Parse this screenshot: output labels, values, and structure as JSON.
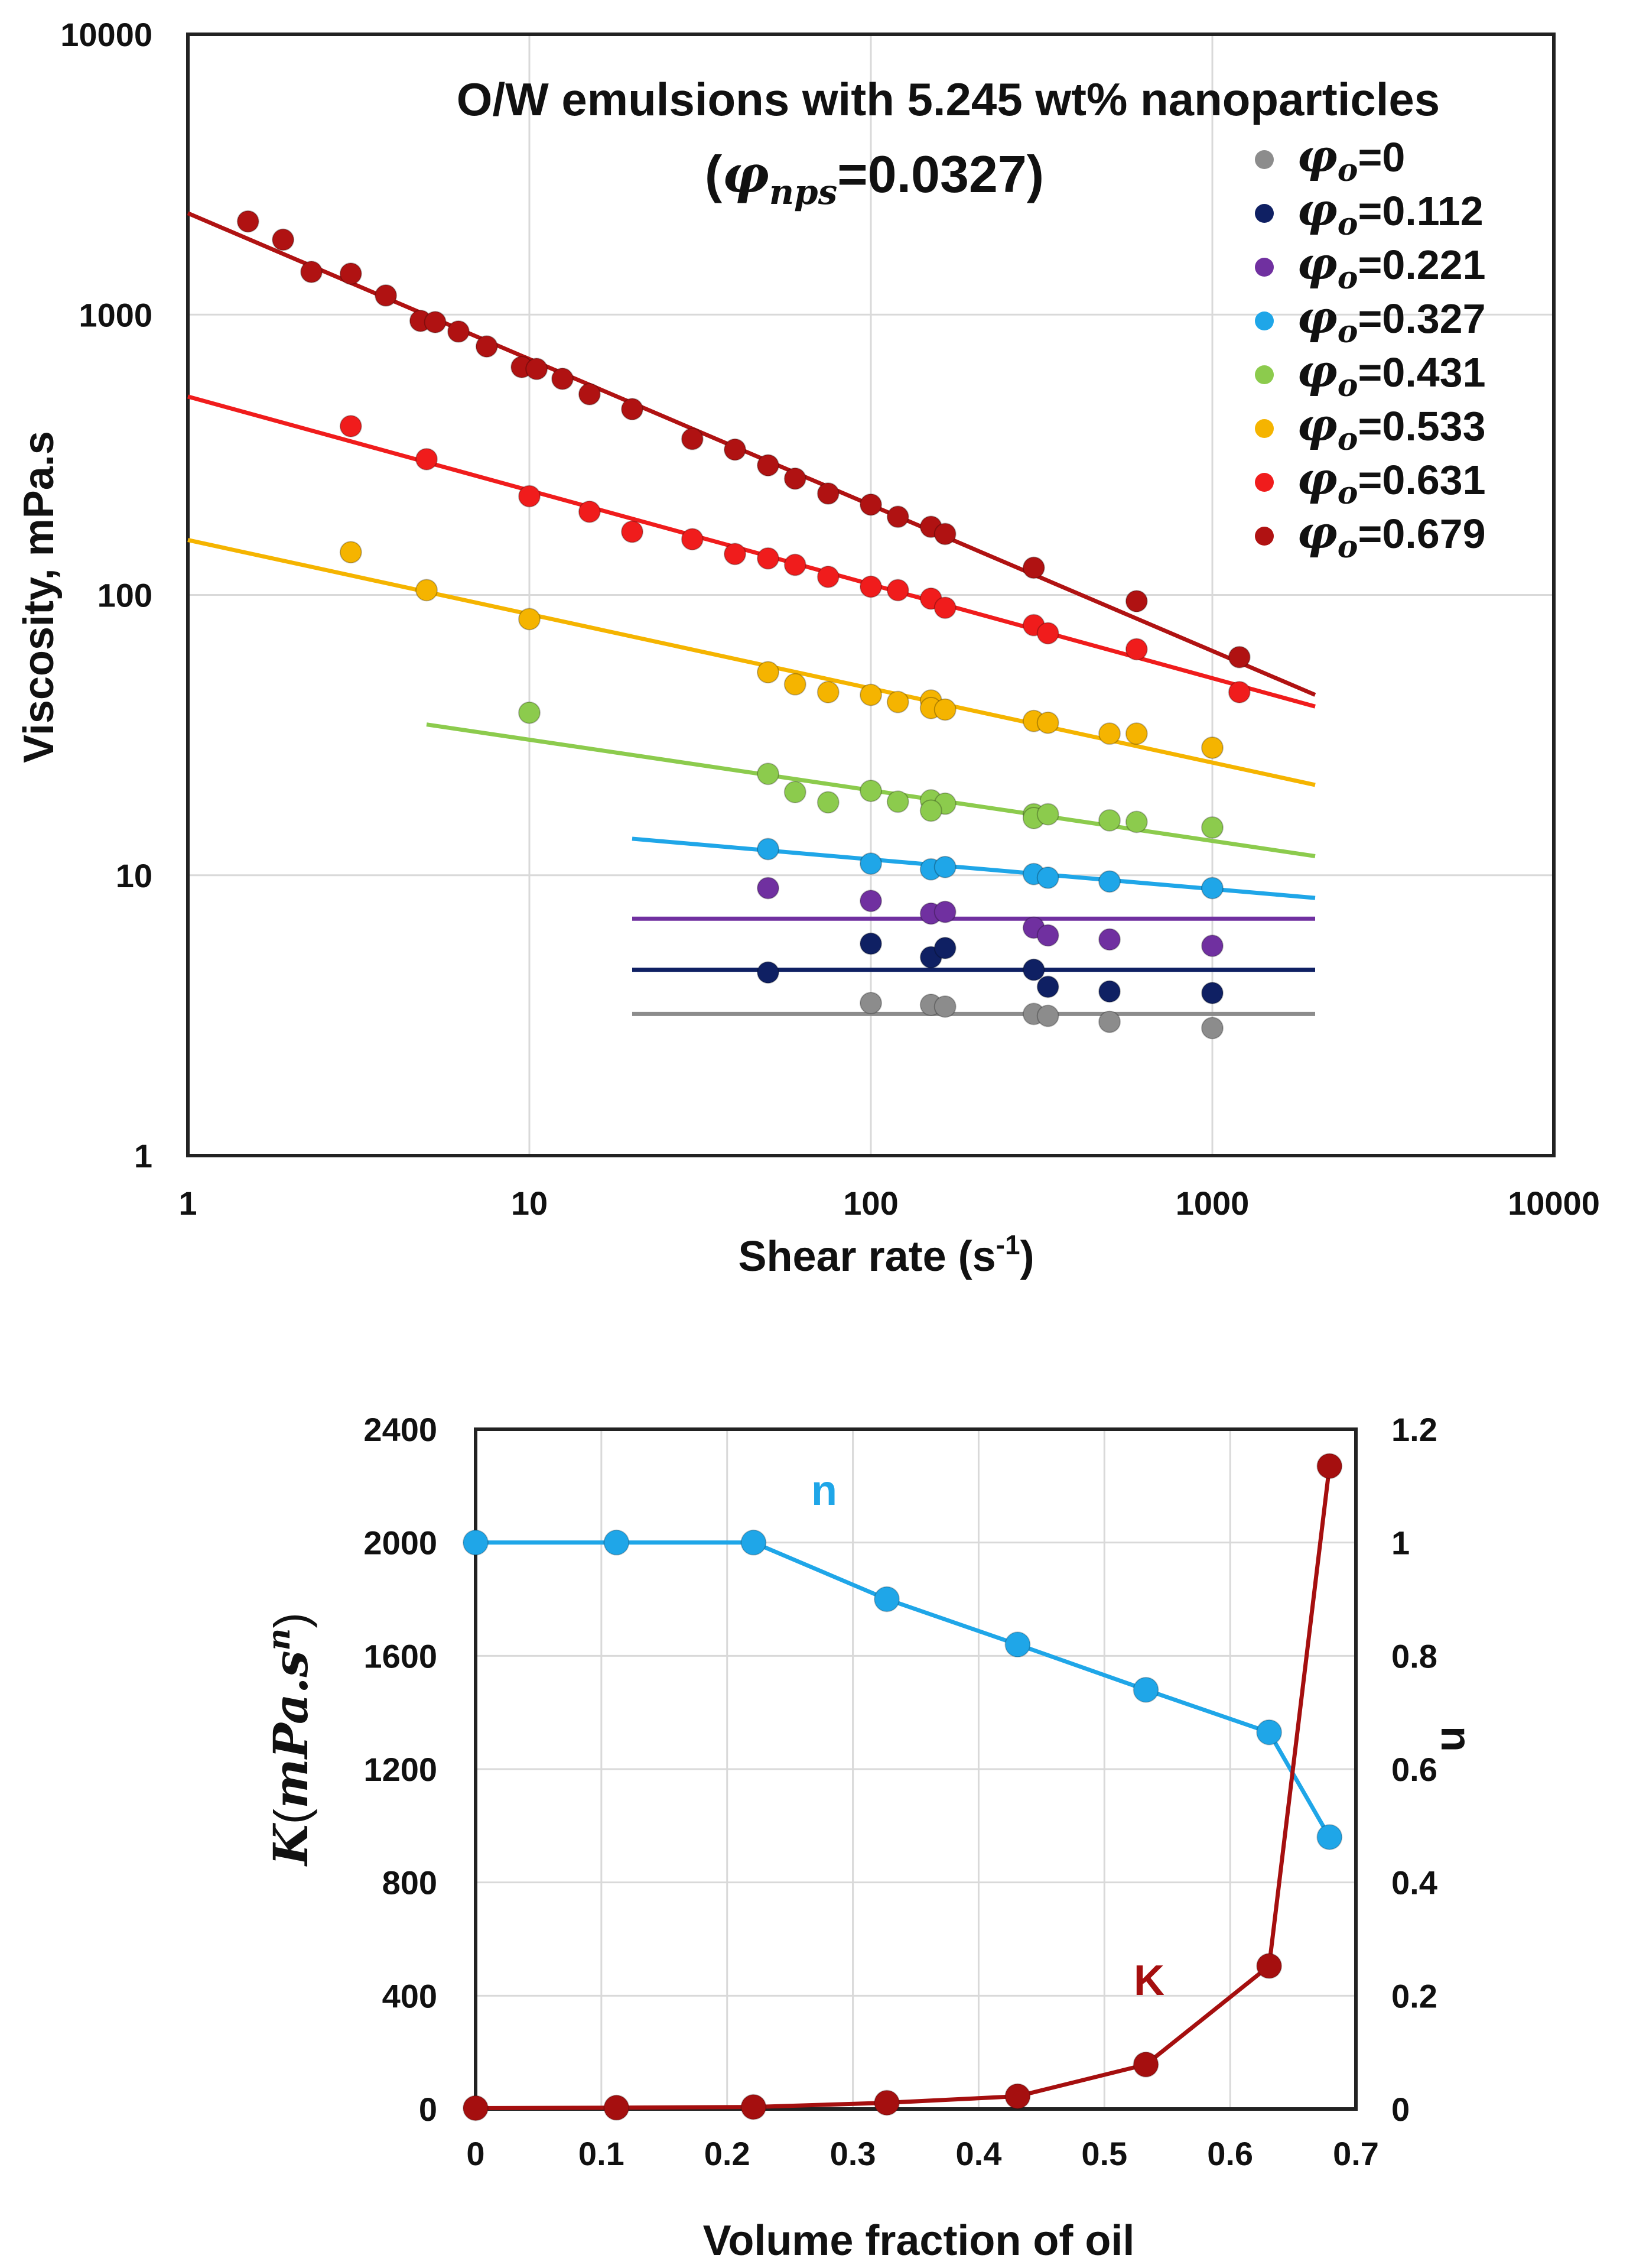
{
  "chart_data": [
    {
      "type": "scatter",
      "title": "O/W emulsions with 5.245 wt% nanoparticles",
      "subtitle": {
        "prefix": "(",
        "symbol": "φ",
        "subscript": "nps",
        "suffix": "=0.0327)"
      },
      "xlabel": "Shear rate (s-1)",
      "xlabel_parts": {
        "main": "Shear rate (s",
        "sup": "-1",
        "end": ")"
      },
      "ylabel": "Viscosity, mPa.s",
      "xscale": "log",
      "yscale": "log",
      "xlim": [
        1,
        10000
      ],
      "ylim": [
        1,
        10000
      ],
      "xticks": [
        1,
        10,
        100,
        1000,
        10000
      ],
      "xtick_labels": [
        "1",
        "10",
        "100",
        "1000",
        "10000"
      ],
      "yticks": [
        1,
        10,
        100,
        1000,
        10000
      ],
      "ytick_labels": [
        "1",
        "10",
        "100",
        "1000",
        "10000"
      ],
      "grid": true,
      "legend_position": "top-right",
      "series": [
        {
          "name": "φo=0",
          "legend_symbol": "φ",
          "legend_sub": "o",
          "legend_value": "=0",
          "color": "#8c8c8c",
          "points": [
            [
              100,
              3.5
            ],
            [
              150,
              3.45
            ],
            [
              165,
              3.4
            ],
            [
              300,
              3.2
            ],
            [
              330,
              3.15
            ],
            [
              500,
              3.0
            ],
            [
              1000,
              2.85
            ]
          ],
          "fit": {
            "x": [
              20,
              2000
            ],
            "y": [
              3.2,
              3.2
            ]
          }
        },
        {
          "name": "φo=0.112",
          "legend_symbol": "φ",
          "legend_sub": "o",
          "legend_value": "=0.112",
          "color": "#0f2063",
          "points": [
            [
              50,
              4.5
            ],
            [
              100,
              5.7
            ],
            [
              150,
              5.1
            ],
            [
              165,
              5.5
            ],
            [
              300,
              4.6
            ],
            [
              330,
              4.0
            ],
            [
              500,
              3.85
            ],
            [
              1000,
              3.8
            ]
          ],
          "fit": {
            "x": [
              20,
              2000
            ],
            "y": [
              4.6,
              4.6
            ]
          }
        },
        {
          "name": "φo=0.221",
          "legend_symbol": "φ",
          "legend_sub": "o",
          "legend_value": "=0.221",
          "color": "#7030a0",
          "points": [
            [
              50,
              9.0
            ],
            [
              100,
              8.1
            ],
            [
              150,
              7.3
            ],
            [
              165,
              7.4
            ],
            [
              300,
              6.5
            ],
            [
              330,
              6.1
            ],
            [
              500,
              5.9
            ],
            [
              1000,
              5.6
            ]
          ],
          "fit": {
            "x": [
              20,
              2000
            ],
            "y": [
              7.0,
              7.0
            ]
          }
        },
        {
          "name": "φo=0.327",
          "legend_symbol": "φ",
          "legend_sub": "o",
          "legend_value": "=0.327",
          "color": "#1fa6e8",
          "points": [
            [
              50,
              12.4
            ],
            [
              100,
              11.0
            ],
            [
              150,
              10.5
            ],
            [
              165,
              10.7
            ],
            [
              300,
              10.1
            ],
            [
              330,
              9.8
            ],
            [
              500,
              9.5
            ],
            [
              1000,
              9.0
            ]
          ],
          "fit": {
            "x": [
              20,
              2000
            ],
            "y": [
              13.5,
              8.3
            ]
          }
        },
        {
          "name": "φo=0.431",
          "legend_symbol": "φ",
          "legend_sub": "o",
          "legend_value": "=0.431",
          "color": "#8ccb4d",
          "points": [
            [
              10,
              38
            ],
            [
              50,
              23
            ],
            [
              60,
              19.8
            ],
            [
              75,
              18.2
            ],
            [
              100,
              20
            ],
            [
              120,
              18.3
            ],
            [
              150,
              18.5
            ],
            [
              165,
              18.0
            ],
            [
              150,
              17.0
            ],
            [
              300,
              16.5
            ],
            [
              300,
              16.0
            ],
            [
              330,
              16.5
            ],
            [
              500,
              15.7
            ],
            [
              600,
              15.5
            ],
            [
              1000,
              14.8
            ]
          ],
          "fit": {
            "x": [
              5,
              2000
            ],
            "y": [
              34.5,
              11.7
            ]
          }
        },
        {
          "name": "φo=0.533",
          "legend_symbol": "φ",
          "legend_sub": "o",
          "legend_value": "=0.533",
          "color": "#f5b400",
          "points": [
            [
              3,
              142
            ],
            [
              5,
              104
            ],
            [
              10,
              82
            ],
            [
              50,
              53
            ],
            [
              60,
              48
            ],
            [
              75,
              45
            ],
            [
              100,
              44
            ],
            [
              120,
              41.5
            ],
            [
              150,
              42
            ],
            [
              150,
              39.5
            ],
            [
              165,
              39
            ],
            [
              300,
              35.5
            ],
            [
              330,
              35
            ],
            [
              500,
              32
            ],
            [
              600,
              32
            ],
            [
              1000,
              28.5
            ]
          ],
          "fit": {
            "x": [
              1,
              2000
            ],
            "y": [
              157,
              21
            ]
          }
        },
        {
          "name": "φo=0.631",
          "legend_symbol": "φ",
          "legend_sub": "o",
          "legend_value": "=0.631",
          "color": "#f01c1c",
          "points": [
            [
              3,
              400
            ],
            [
              5,
              305
            ],
            [
              10,
              225
            ],
            [
              15,
              198
            ],
            [
              20,
              168
            ],
            [
              30,
              158
            ],
            [
              40,
              140
            ],
            [
              50,
              135
            ],
            [
              60,
              128
            ],
            [
              75,
              116
            ],
            [
              100,
              107
            ],
            [
              120,
              104
            ],
            [
              150,
              97
            ],
            [
              165,
              90
            ],
            [
              300,
              78
            ],
            [
              330,
              73
            ],
            [
              600,
              64
            ],
            [
              1200,
              45
            ]
          ],
          "fit": {
            "x": [
              1,
              2000
            ],
            "y": [
              510,
              40
            ]
          }
        },
        {
          "name": "φo=0.679",
          "legend_symbol": "φ",
          "legend_sub": "o",
          "legend_value": "=0.679",
          "color": "#b01212",
          "points": [
            [
              1.5,
              2150
            ],
            [
              1.9,
              1850
            ],
            [
              2.3,
              1420
            ],
            [
              3,
              1400
            ],
            [
              3.8,
              1170
            ],
            [
              4.8,
              950
            ],
            [
              5.3,
              940
            ],
            [
              6.2,
              870
            ],
            [
              7.5,
              770
            ],
            [
              9.5,
              650
            ],
            [
              10.5,
              640
            ],
            [
              12.5,
              590
            ],
            [
              15,
              520
            ],
            [
              20,
              460
            ],
            [
              30,
              360
            ],
            [
              40,
              330
            ],
            [
              50,
              290
            ],
            [
              60,
              260
            ],
            [
              75,
              230
            ],
            [
              100,
              210
            ],
            [
              120,
              190
            ],
            [
              150,
              175
            ],
            [
              165,
              165
            ],
            [
              300,
              125
            ],
            [
              600,
              95
            ],
            [
              1200,
              60
            ]
          ],
          "fit": {
            "x": [
              1,
              2000
            ],
            "y": [
              2300,
              44
            ]
          }
        }
      ]
    },
    {
      "type": "line",
      "xlabel": "Volume fraction of oil",
      "ylabel_left": "K(mPa.s^n)",
      "ylabel_left_parts": {
        "K": "K",
        "open": "(",
        "unit": "mPa.s",
        "sup": "n",
        "close": ")"
      },
      "ylabel_right": "n",
      "xlim": [
        0,
        0.7
      ],
      "ylim_left": [
        0,
        2400
      ],
      "ylim_right": [
        0,
        1.2
      ],
      "xticks": [
        0,
        0.1,
        0.2,
        0.3,
        0.4,
        0.5,
        0.6,
        0.7
      ],
      "xtick_labels": [
        "0",
        "0.1",
        "0.2",
        "0.3",
        "0.4",
        "0.5",
        "0.6",
        "0.7"
      ],
      "yticks_left": [
        0,
        400,
        800,
        1200,
        1600,
        2000,
        2400
      ],
      "ytick_labels_left": [
        "0",
        "400",
        "800",
        "1200",
        "1600",
        "2000",
        "2400"
      ],
      "yticks_right": [
        0,
        0.2,
        0.4,
        0.6,
        0.8,
        1,
        1.2
      ],
      "ytick_labels_right": [
        "0",
        "0.2",
        "0.4",
        "0.6",
        "0.8",
        "1",
        "1.2"
      ],
      "grid": true,
      "x": [
        0,
        0.112,
        0.221,
        0.327,
        0.431,
        0.533,
        0.631,
        0.679
      ],
      "series": [
        {
          "name": "n",
          "axis": "right",
          "color": "#1fa6e8",
          "label": "n",
          "values": [
            1.0,
            1.0,
            1.0,
            0.9,
            0.82,
            0.74,
            0.665,
            0.48
          ]
        },
        {
          "name": "K",
          "axis": "left",
          "color": "#a50f0f",
          "label": "K",
          "values": [
            3.2,
            4.6,
            7.0,
            22,
            45,
            157,
            505,
            2270
          ]
        }
      ]
    }
  ]
}
